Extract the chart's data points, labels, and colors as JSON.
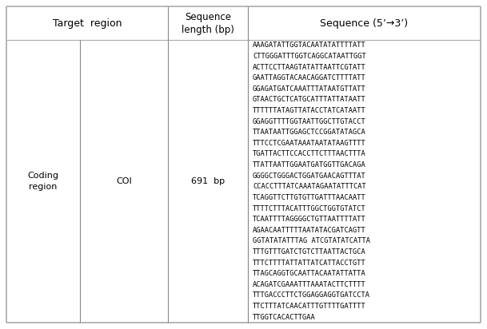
{
  "col_coding": "Coding\nregion",
  "col_coi": "COI",
  "col_len": "691  bp",
  "header_target": "Target  region",
  "header_seq_len": "Sequence\nlength (bp)",
  "header_seq": "Sequence (5’→3’)",
  "sequence_lines": [
    "AAAGATATTGGTACAATATATTTTATT",
    "CTTGGGATTTGGTCAGGCATAATTGGT",
    "ACTTCCTTAAGTATATTAATTCGTATT",
    "GAATTAGGTACAACAGGATCTTTTATT",
    "GGAGATGATCAAATTTATAATGTTATT",
    "GTAACTGCTCATGCATTTATTATAATT",
    "TTTTTTATAGTTATACCTATCATAATT",
    "GGAGGTTTTGGTAATTGGCTTGTACCT",
    "TTAATAATTGGAGCTCCGGATATAGCA",
    "TTTCCTCGAATAAATAATATAAGTTTT",
    "TGATTACTTCCACCTTCTTTAACTTTA",
    "TTATTAATTGGAATGATGGTTGACAGA",
    "GGGGCTGGGACTGGATGAACAGTTTAT",
    "CCACCTTTATCAAATAGAATATTTCAT",
    "TCAGGTTCTTGTGTTGATTTAACAATT",
    "TTTTCTTTACATTTGGCTGGTGTATCT",
    "TCAATTTTAGGGGCTGTTAATTTTATT",
    "AGAACAATTTTTAATATACGATCAGTT",
    "GGTATATATTTAG ATCGTATATCATTA",
    "TTTGTTTGATCTGTCTTAATTACTGCA",
    "TTTCTTTTATTATTATCATTACCTGTT",
    "TTAGCAGGTGCAATTACAATATTATTA",
    "ACAGATCGAAATTTAAATACTTCTTTT",
    "TTTGACCCTTCTGGAGGAGGTGATCCTA",
    "TTCTTTATCAACATTTGTTTTGATTTT",
    "TTGGTCACACTTGAA"
  ],
  "bg": "#ffffff",
  "line_color": "#888888",
  "outer_line_color": "#aaaaaa"
}
